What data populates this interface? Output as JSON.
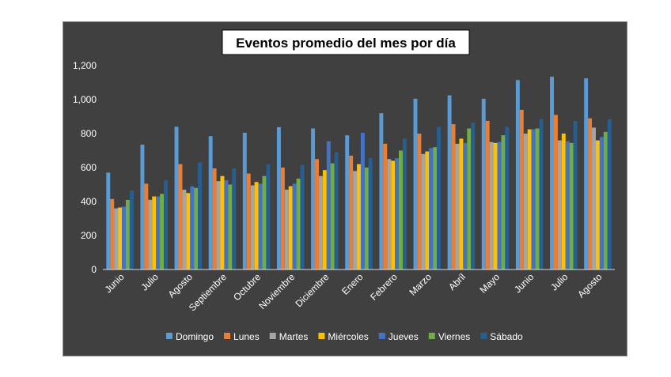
{
  "chart_data": {
    "type": "bar",
    "title": "Eventos promedio del mes por día",
    "categories": [
      "Junio",
      "Julio",
      "Agosto",
      "Septiembre",
      "Octubre",
      "Noviembre",
      "Diciembre",
      "Enero",
      "Febrero",
      "Marzo",
      "Abril",
      "Mayo",
      "Junio",
      "Julio",
      "Agosto"
    ],
    "ylim": [
      0,
      1200
    ],
    "yticks": [
      "0",
      "200",
      "400",
      "600",
      "800",
      "1,000",
      "1,200"
    ],
    "grid": false,
    "legend_position": "bottom",
    "series": [
      {
        "name": "Domingo",
        "color": "#5b9bd5",
        "values": [
          570,
          735,
          840,
          785,
          805,
          838,
          830,
          790,
          920,
          1005,
          1025,
          1005,
          1115,
          1135,
          1125
        ]
      },
      {
        "name": "Lunes",
        "color": "#ed7d31",
        "values": [
          415,
          505,
          620,
          595,
          565,
          600,
          650,
          670,
          740,
          800,
          855,
          875,
          940,
          910,
          890
        ]
      },
      {
        "name": "Martes",
        "color": "#a5a5a5",
        "values": [
          360,
          410,
          470,
          520,
          495,
          470,
          550,
          580,
          650,
          680,
          740,
          750,
          800,
          760,
          835
        ]
      },
      {
        "name": "Miércoles",
        "color": "#ffc000",
        "values": [
          365,
          430,
          450,
          550,
          515,
          490,
          585,
          620,
          640,
          695,
          770,
          745,
          825,
          800,
          760
        ]
      },
      {
        "name": "Jueves",
        "color": "#4472c4",
        "values": [
          370,
          430,
          490,
          525,
          505,
          505,
          755,
          805,
          655,
          715,
          745,
          750,
          825,
          755,
          780
        ]
      },
      {
        "name": "Viernes",
        "color": "#70ad47",
        "values": [
          410,
          445,
          480,
          500,
          550,
          535,
          625,
          600,
          700,
          720,
          830,
          790,
          830,
          745,
          810
        ]
      },
      {
        "name": "Sábado",
        "color": "#255e91",
        "values": [
          465,
          525,
          630,
          595,
          620,
          615,
          690,
          655,
          770,
          840,
          865,
          840,
          885,
          875,
          885
        ]
      }
    ]
  }
}
